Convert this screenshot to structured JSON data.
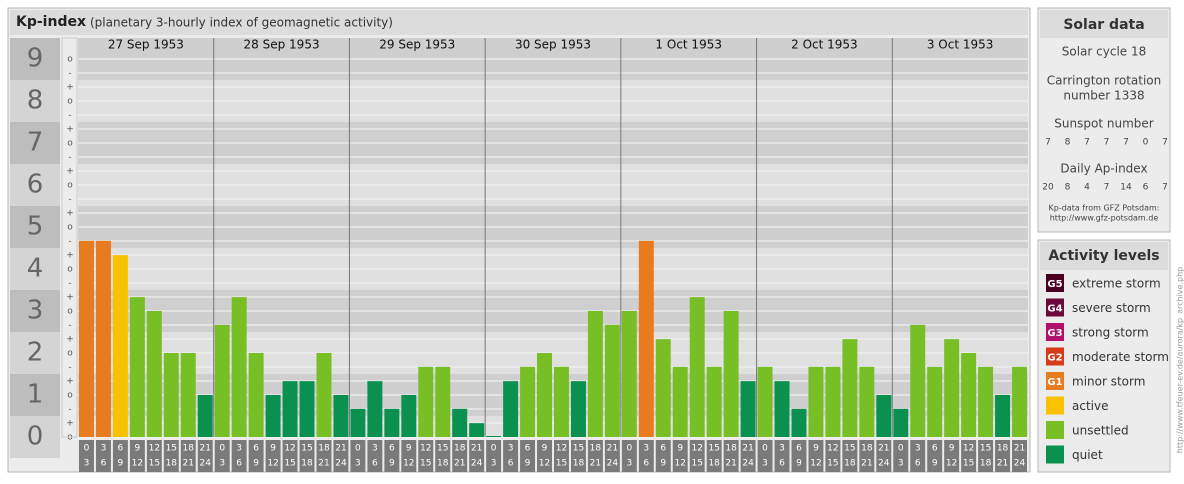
{
  "chart_data": {
    "type": "bar",
    "title": "Kp-index",
    "subtitle": "(planetary 3-hourly index of geomagnetic activity)",
    "ylim": [
      0,
      9.5
    ],
    "yticks": [
      0,
      1,
      2,
      3,
      4,
      5,
      6,
      7,
      8,
      9
    ],
    "minor_labels": [
      "o",
      "+",
      "-"
    ],
    "hours_from": [
      "0",
      "3",
      "6",
      "9",
      "12",
      "15",
      "18",
      "21"
    ],
    "hours_to": [
      "3",
      "6",
      "9",
      "12",
      "15",
      "18",
      "21",
      "24"
    ],
    "series": [
      {
        "name": "27 Sep 1953",
        "values": [
          4.67,
          4.67,
          4.33,
          3.33,
          3,
          2,
          2,
          1
        ],
        "colors": [
          "#e87b1e",
          "#e87b1e",
          "#f8c200",
          "#78bf26",
          "#78bf26",
          "#78bf26",
          "#78bf26",
          "#0a9150"
        ]
      },
      {
        "name": "28 Sep 1953",
        "values": [
          2.67,
          3.33,
          2,
          1,
          1.33,
          1.33,
          2,
          1
        ],
        "colors": [
          "#78bf26",
          "#78bf26",
          "#78bf26",
          "#0a9150",
          "#0a9150",
          "#0a9150",
          "#78bf26",
          "#0a9150"
        ]
      },
      {
        "name": "29 Sep 1953",
        "values": [
          0.67,
          1.33,
          0.67,
          1,
          1.67,
          1.67,
          0.67,
          0.33
        ],
        "colors": [
          "#0a9150",
          "#0a9150",
          "#0a9150",
          "#0a9150",
          "#78bf26",
          "#78bf26",
          "#0a9150",
          "#0a9150"
        ]
      },
      {
        "name": "30 Sep 1953",
        "values": [
          0,
          1.33,
          1.67,
          2,
          1.67,
          1.33,
          3,
          2.67
        ],
        "colors": [
          "#0a9150",
          "#0a9150",
          "#78bf26",
          "#78bf26",
          "#78bf26",
          "#0a9150",
          "#78bf26",
          "#78bf26"
        ]
      },
      {
        "name": "1 Oct 1953",
        "values": [
          3,
          4.67,
          2.33,
          1.67,
          3.33,
          1.67,
          3,
          1.33
        ],
        "colors": [
          "#78bf26",
          "#e87b1e",
          "#78bf26",
          "#78bf26",
          "#78bf26",
          "#78bf26",
          "#78bf26",
          "#0a9150"
        ]
      },
      {
        "name": "2 Oct 1953",
        "values": [
          1.67,
          1.33,
          0.67,
          1.67,
          1.67,
          2.33,
          1.67,
          1
        ],
        "colors": [
          "#78bf26",
          "#0a9150",
          "#0a9150",
          "#78bf26",
          "#78bf26",
          "#78bf26",
          "#78bf26",
          "#0a9150"
        ]
      },
      {
        "name": "3 Oct 1953",
        "values": [
          0.67,
          2.67,
          1.67,
          2.33,
          2,
          1.67,
          1,
          1.67
        ],
        "colors": [
          "#0a9150",
          "#78bf26",
          "#78bf26",
          "#78bf26",
          "#78bf26",
          "#78bf26",
          "#0a9150",
          "#78bf26"
        ]
      }
    ]
  },
  "solar_data": {
    "title": "Solar data",
    "cycle": "Solar cycle 18",
    "carrington": [
      "Carrington rotation",
      "number 1338"
    ],
    "sunspot_title": "Sunspot number",
    "sunspot": [
      7,
      8,
      7,
      7,
      7,
      0,
      7
    ],
    "ap_title": "Daily Ap-index",
    "ap": [
      20,
      8,
      4,
      7,
      14,
      6,
      7
    ],
    "source": [
      "Kp-data from GFZ Potsdam:",
      "http://www.gfz-potsdam.de"
    ]
  },
  "activity_levels": {
    "title": "Activity levels",
    "items": [
      {
        "code": "G5",
        "label": "extreme storm",
        "color": "#4a0020"
      },
      {
        "code": "G4",
        "label": "severe storm",
        "color": "#6b0a3a"
      },
      {
        "code": "G3",
        "label": "strong storm",
        "color": "#b0106a"
      },
      {
        "code": "G2",
        "label": "moderate storm",
        "color": "#d63a1a"
      },
      {
        "code": "G1",
        "label": "minor storm",
        "color": "#e87b1e"
      },
      {
        "label": "active",
        "color": "#f8c200"
      },
      {
        "label": "unsettled",
        "color": "#78bf26"
      },
      {
        "label": "quiet",
        "color": "#0a9150"
      }
    ]
  },
  "footer_url": "http://www.tfeuer-ev.de/aurora/kp_archive.php"
}
